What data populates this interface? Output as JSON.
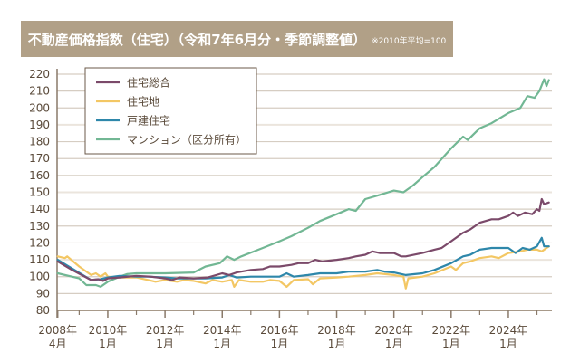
{
  "header": {
    "title": "不動産価格指数（住宅）（令和7年6月分・季節調整値）",
    "note": "※2010年平均=100"
  },
  "chart_data": {
    "type": "line",
    "title": "不動産価格指数（住宅）（令和7年6月分・季節調整値）",
    "subtitle": "※2010年平均=100",
    "xlabel": "",
    "ylabel": "",
    "ylim": [
      80,
      220
    ],
    "yticks": [
      220,
      210,
      200,
      190,
      180,
      170,
      160,
      150,
      140,
      130,
      120,
      110,
      100,
      90,
      80
    ],
    "xrange": [
      "2008-04",
      "2025-06"
    ],
    "xticks": [
      {
        "line1": "2008年",
        "line2": "4月",
        "at": "2008-04"
      },
      {
        "line1": "2010年",
        "line2": "1月",
        "at": "2010-01"
      },
      {
        "line1": "2012年",
        "line2": "1月",
        "at": "2012-01"
      },
      {
        "line1": "2014年",
        "line2": "1月",
        "at": "2014-01"
      },
      {
        "line1": "2016年",
        "line2": "1月",
        "at": "2016-01"
      },
      {
        "line1": "2018年",
        "line2": "1月",
        "at": "2018-01"
      },
      {
        "line1": "2020年",
        "line2": "1月",
        "at": "2020-01"
      },
      {
        "line1": "2022年",
        "line2": "1月",
        "at": "2022-01"
      },
      {
        "line1": "2024年",
        "line2": "1月",
        "at": "2024-01"
      }
    ],
    "minor_ticks": [
      "2009-01",
      "2011-01",
      "2013-01",
      "2015-01",
      "2017-01",
      "2019-01",
      "2021-01",
      "2023-01",
      "2025-01"
    ],
    "grid": true,
    "legend_position": "top-left",
    "series": [
      {
        "name": "住宅総合",
        "color": "#7b4a6a",
        "points": [
          [
            "2008-04",
            109
          ],
          [
            "2008-10",
            104
          ],
          [
            "2009-06",
            98
          ],
          [
            "2009-09",
            98.5
          ],
          [
            "2009-11",
            97.5
          ],
          [
            "2010-01",
            99
          ],
          [
            "2010-06",
            99.5
          ],
          [
            "2011-01",
            100.5
          ],
          [
            "2011-07",
            100
          ],
          [
            "2012-01",
            99
          ],
          [
            "2012-04",
            98
          ],
          [
            "2012-07",
            99.5
          ],
          [
            "2013-01",
            99
          ],
          [
            "2013-07",
            99.5
          ],
          [
            "2014-01",
            102
          ],
          [
            "2014-04",
            101
          ],
          [
            "2014-07",
            102.5
          ],
          [
            "2015-01",
            104
          ],
          [
            "2015-06",
            104.5
          ],
          [
            "2015-09",
            106
          ],
          [
            "2016-01",
            106
          ],
          [
            "2016-06",
            107
          ],
          [
            "2016-09",
            108
          ],
          [
            "2017-01",
            108
          ],
          [
            "2017-04",
            110
          ],
          [
            "2017-07",
            109
          ],
          [
            "2018-01",
            110
          ],
          [
            "2018-06",
            111
          ],
          [
            "2018-09",
            112
          ],
          [
            "2019-01",
            113
          ],
          [
            "2019-04",
            115
          ],
          [
            "2019-07",
            114
          ],
          [
            "2020-01",
            114
          ],
          [
            "2020-04",
            112
          ],
          [
            "2020-06",
            112
          ],
          [
            "2021-01",
            114
          ],
          [
            "2021-06",
            116
          ],
          [
            "2021-09",
            117
          ],
          [
            "2022-01",
            121
          ],
          [
            "2022-06",
            126
          ],
          [
            "2022-09",
            128
          ],
          [
            "2023-01",
            132
          ],
          [
            "2023-06",
            134
          ],
          [
            "2023-09",
            134
          ],
          [
            "2024-01",
            136
          ],
          [
            "2024-03",
            138
          ],
          [
            "2024-05",
            136
          ],
          [
            "2024-08",
            138
          ],
          [
            "2024-11",
            137
          ],
          [
            "2025-01",
            140
          ],
          [
            "2025-02",
            139
          ],
          [
            "2025-03",
            146
          ],
          [
            "2025-04",
            143
          ],
          [
            "2025-06",
            144
          ]
        ]
      },
      {
        "name": "住宅地",
        "color": "#f3c764",
        "points": [
          [
            "2008-04",
            112
          ],
          [
            "2008-07",
            111
          ],
          [
            "2008-08",
            112
          ],
          [
            "2009-01",
            106
          ],
          [
            "2009-06",
            101
          ],
          [
            "2009-08",
            102
          ],
          [
            "2009-10",
            100
          ],
          [
            "2009-12",
            102
          ],
          [
            "2010-01",
            100
          ],
          [
            "2010-06",
            99.5
          ],
          [
            "2011-01",
            99.5
          ],
          [
            "2011-06",
            98
          ],
          [
            "2011-09",
            97
          ],
          [
            "2012-01",
            98
          ],
          [
            "2012-06",
            97
          ],
          [
            "2012-09",
            98
          ],
          [
            "2013-01",
            97.5
          ],
          [
            "2013-06",
            96
          ],
          [
            "2013-09",
            98
          ],
          [
            "2014-01",
            97
          ],
          [
            "2014-05",
            98
          ],
          [
            "2014-06",
            94
          ],
          [
            "2014-08",
            98
          ],
          [
            "2015-01",
            97
          ],
          [
            "2015-06",
            97
          ],
          [
            "2015-09",
            98
          ],
          [
            "2016-01",
            97.5
          ],
          [
            "2016-04",
            94
          ],
          [
            "2016-07",
            98
          ],
          [
            "2017-01",
            98.5
          ],
          [
            "2017-03",
            95.5
          ],
          [
            "2017-06",
            99
          ],
          [
            "2018-01",
            99.5
          ],
          [
            "2018-06",
            100
          ],
          [
            "2019-01",
            101
          ],
          [
            "2019-06",
            102
          ],
          [
            "2020-01",
            101
          ],
          [
            "2020-05",
            100
          ],
          [
            "2020-06",
            93
          ],
          [
            "2020-07",
            99
          ],
          [
            "2021-01",
            100
          ],
          [
            "2021-06",
            102
          ],
          [
            "2022-01",
            106
          ],
          [
            "2022-03",
            104
          ],
          [
            "2022-06",
            108
          ],
          [
            "2022-09",
            109
          ],
          [
            "2023-01",
            111
          ],
          [
            "2023-06",
            112
          ],
          [
            "2023-09",
            111
          ],
          [
            "2024-01",
            114
          ],
          [
            "2024-06",
            115
          ],
          [
            "2024-09",
            116
          ],
          [
            "2025-01",
            116
          ],
          [
            "2025-03",
            115
          ],
          [
            "2025-06",
            118
          ]
        ]
      },
      {
        "name": "戸建住宅",
        "color": "#2e87aa",
        "points": [
          [
            "2008-04",
            110
          ],
          [
            "2009-06",
            98
          ],
          [
            "2009-10",
            98.5
          ],
          [
            "2010-01",
            99.5
          ],
          [
            "2010-06",
            100.5
          ],
          [
            "2011-01",
            100
          ],
          [
            "2011-06",
            100
          ],
          [
            "2012-01",
            99.5
          ],
          [
            "2012-06",
            99
          ],
          [
            "2013-01",
            99
          ],
          [
            "2013-06",
            99
          ],
          [
            "2014-01",
            99.5
          ],
          [
            "2014-04",
            101
          ],
          [
            "2014-07",
            99.5
          ],
          [
            "2015-01",
            100
          ],
          [
            "2015-06",
            100
          ],
          [
            "2016-01",
            100
          ],
          [
            "2016-04",
            102
          ],
          [
            "2016-07",
            100
          ],
          [
            "2017-01",
            101
          ],
          [
            "2017-06",
            102
          ],
          [
            "2018-01",
            102
          ],
          [
            "2018-06",
            103
          ],
          [
            "2019-01",
            103
          ],
          [
            "2019-06",
            104
          ],
          [
            "2019-09",
            103
          ],
          [
            "2020-01",
            102.5
          ],
          [
            "2020-06",
            101
          ],
          [
            "2021-01",
            102
          ],
          [
            "2021-06",
            104
          ],
          [
            "2022-01",
            108
          ],
          [
            "2022-06",
            112
          ],
          [
            "2022-09",
            113
          ],
          [
            "2023-01",
            116
          ],
          [
            "2023-06",
            117
          ],
          [
            "2023-09",
            117
          ],
          [
            "2024-01",
            117
          ],
          [
            "2024-04",
            114
          ],
          [
            "2024-07",
            117
          ],
          [
            "2024-10",
            116
          ],
          [
            "2025-01",
            118
          ],
          [
            "2025-03",
            123
          ],
          [
            "2025-04",
            118
          ],
          [
            "2025-06",
            118
          ]
        ]
      },
      {
        "name": "マンション（区分所有）",
        "color": "#72b794",
        "points": [
          [
            "2008-04",
            102
          ],
          [
            "2009-01",
            99
          ],
          [
            "2009-04",
            95
          ],
          [
            "2009-08",
            95
          ],
          [
            "2009-10",
            94
          ],
          [
            "2010-01",
            97
          ],
          [
            "2010-06",
            100
          ],
          [
            "2010-09",
            101.5
          ],
          [
            "2011-01",
            102
          ],
          [
            "2012-01",
            102
          ],
          [
            "2013-01",
            102.5
          ],
          [
            "2013-06",
            106
          ],
          [
            "2013-12",
            108
          ],
          [
            "2014-03",
            112
          ],
          [
            "2014-06",
            110
          ],
          [
            "2014-09",
            112
          ],
          [
            "2015-06",
            117
          ],
          [
            "2016-01",
            121
          ],
          [
            "2016-06",
            124
          ],
          [
            "2017-01",
            129
          ],
          [
            "2017-06",
            133
          ],
          [
            "2018-01",
            137
          ],
          [
            "2018-06",
            140
          ],
          [
            "2018-09",
            139
          ],
          [
            "2019-01",
            146
          ],
          [
            "2019-06",
            148
          ],
          [
            "2020-01",
            151
          ],
          [
            "2020-05",
            150
          ],
          [
            "2020-09",
            154
          ],
          [
            "2021-01",
            159
          ],
          [
            "2021-06",
            165
          ],
          [
            "2022-01",
            176
          ],
          [
            "2022-06",
            183
          ],
          [
            "2022-08",
            181
          ],
          [
            "2023-01",
            188
          ],
          [
            "2023-06",
            191
          ],
          [
            "2024-01",
            197
          ],
          [
            "2024-06",
            200
          ],
          [
            "2024-09",
            207
          ],
          [
            "2024-12",
            206
          ],
          [
            "2025-02",
            210
          ],
          [
            "2025-04",
            217
          ],
          [
            "2025-05",
            213
          ],
          [
            "2025-06",
            216.5
          ]
        ]
      }
    ]
  },
  "legend": {
    "items": [
      {
        "label": "住宅総合",
        "color": "#7b4a6a"
      },
      {
        "label": "住宅地",
        "color": "#f3c764"
      },
      {
        "label": "戸建住宅",
        "color": "#2e87aa"
      },
      {
        "label": "マンション（区分所有）",
        "color": "#72b794"
      }
    ]
  }
}
